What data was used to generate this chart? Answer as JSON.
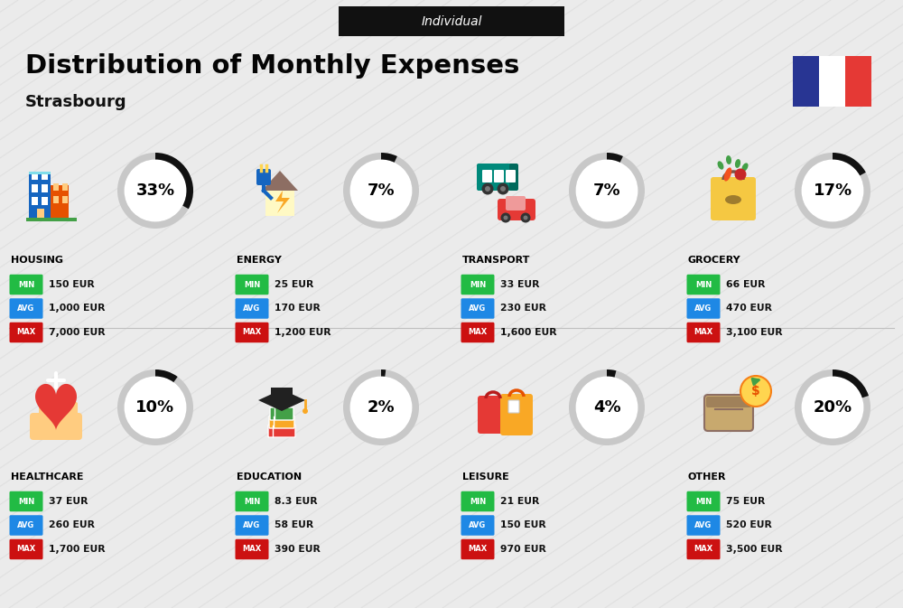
{
  "title": "Distribution of Monthly Expenses",
  "subtitle": "Strasbourg",
  "badge": "Individual",
  "bg_color": "#ebebeb",
  "categories": [
    {
      "name": "HOUSING",
      "pct": 33,
      "min_val": "150 EUR",
      "avg_val": "1,000 EUR",
      "max_val": "7,000 EUR",
      "icon": "housing",
      "row": 0,
      "col": 0
    },
    {
      "name": "ENERGY",
      "pct": 7,
      "min_val": "25 EUR",
      "avg_val": "170 EUR",
      "max_val": "1,200 EUR",
      "icon": "energy",
      "row": 0,
      "col": 1
    },
    {
      "name": "TRANSPORT",
      "pct": 7,
      "min_val": "33 EUR",
      "avg_val": "230 EUR",
      "max_val": "1,600 EUR",
      "icon": "transport",
      "row": 0,
      "col": 2
    },
    {
      "name": "GROCERY",
      "pct": 17,
      "min_val": "66 EUR",
      "avg_val": "470 EUR",
      "max_val": "3,100 EUR",
      "icon": "grocery",
      "row": 0,
      "col": 3
    },
    {
      "name": "HEALTHCARE",
      "pct": 10,
      "min_val": "37 EUR",
      "avg_val": "260 EUR",
      "max_val": "1,700 EUR",
      "icon": "healthcare",
      "row": 1,
      "col": 0
    },
    {
      "name": "EDUCATION",
      "pct": 2,
      "min_val": "8.3 EUR",
      "avg_val": "58 EUR",
      "max_val": "390 EUR",
      "icon": "education",
      "row": 1,
      "col": 1
    },
    {
      "name": "LEISURE",
      "pct": 4,
      "min_val": "21 EUR",
      "avg_val": "150 EUR",
      "max_val": "970 EUR",
      "icon": "leisure",
      "row": 1,
      "col": 2
    },
    {
      "name": "OTHER",
      "pct": 20,
      "min_val": "75 EUR",
      "avg_val": "520 EUR",
      "max_val": "3,500 EUR",
      "icon": "other",
      "row": 1,
      "col": 3
    }
  ],
  "min_color": "#22bb44",
  "avg_color": "#1e88e5",
  "max_color": "#cc1111",
  "ring_bg_color": "#c8c8c8",
  "ring_fg_color": "#111111",
  "title_color": "#050505",
  "subtitle_color": "#111111",
  "france_blue": "#283593",
  "france_red": "#e53935",
  "diag_color": "#d5d5d5"
}
